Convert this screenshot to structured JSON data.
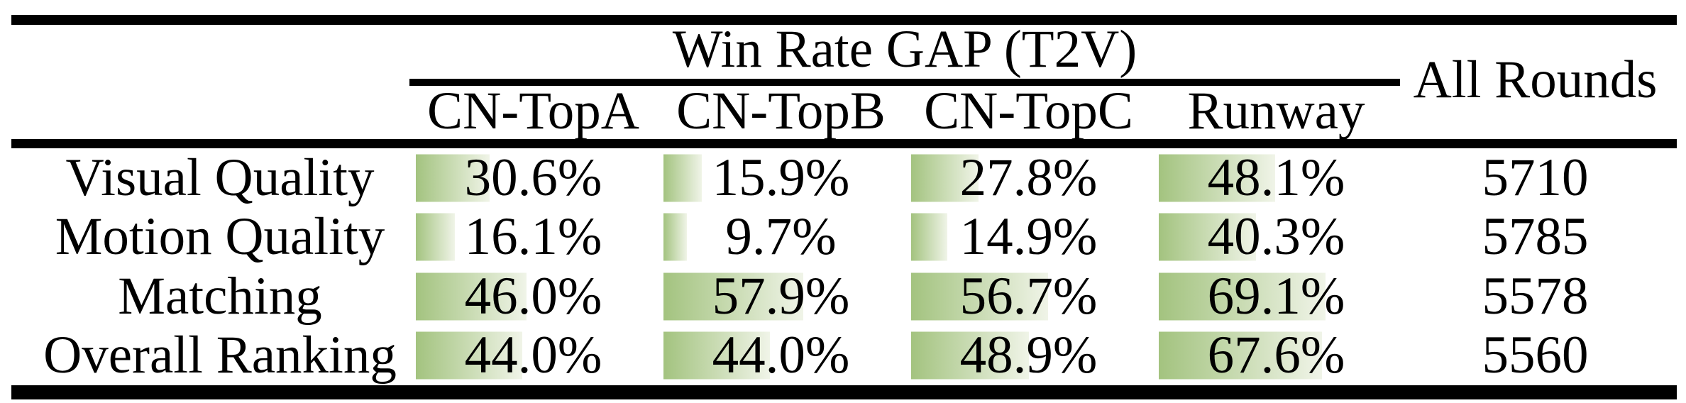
{
  "table": {
    "title": "Win Rate GAP (T2V)",
    "all_rounds_header": "All Rounds",
    "columns": [
      "CN-TopA",
      "CN-TopB",
      "CN-TopC",
      "Runway"
    ],
    "rows": [
      {
        "label": "Visual Quality",
        "values": [
          "30.6%",
          "15.9%",
          "27.8%",
          "48.1%"
        ],
        "all_rounds": "5710"
      },
      {
        "label": "Motion Quality",
        "values": [
          "16.1%",
          "9.7%",
          "14.9%",
          "40.3%"
        ],
        "all_rounds": "5785"
      },
      {
        "label": "Matching",
        "values": [
          "46.0%",
          "57.9%",
          "56.7%",
          "69.1%"
        ],
        "all_rounds": "5578"
      },
      {
        "label": "Overall Ranking",
        "values": [
          "44.0%",
          "44.0%",
          "48.9%",
          "67.6%"
        ],
        "all_rounds": "5560"
      }
    ]
  },
  "chart_data": {
    "type": "table",
    "title": "Win Rate GAP (T2V)",
    "columns": [
      "CN-TopA",
      "CN-TopB",
      "CN-TopC",
      "Runway",
      "All Rounds"
    ],
    "row_labels": [
      "Visual Quality",
      "Motion Quality",
      "Matching",
      "Overall Ranking"
    ],
    "series": [
      {
        "name": "Visual Quality",
        "win_rate_gap_pct": [
          30.6,
          15.9,
          27.8,
          48.1
        ],
        "all_rounds": 5710
      },
      {
        "name": "Motion Quality",
        "win_rate_gap_pct": [
          16.1,
          9.7,
          14.9,
          40.3
        ],
        "all_rounds": 5785
      },
      {
        "name": "Matching",
        "win_rate_gap_pct": [
          46.0,
          57.9,
          56.7,
          69.1
        ],
        "all_rounds": 5578
      },
      {
        "name": "Overall Ranking",
        "win_rate_gap_pct": [
          44.0,
          44.0,
          48.9,
          67.6
        ],
        "all_rounds": 5560
      }
    ],
    "value_range_pct": [
      0,
      100
    ],
    "bar_style": "in-cell data bar, width proportional to win-rate percent",
    "colors": {
      "bar_gradient_start": "#a3c37f",
      "bar_gradient_end": "#f0f4e8",
      "rule_color": "#000000",
      "text_color": "#000000",
      "background": "#ffffff"
    }
  }
}
